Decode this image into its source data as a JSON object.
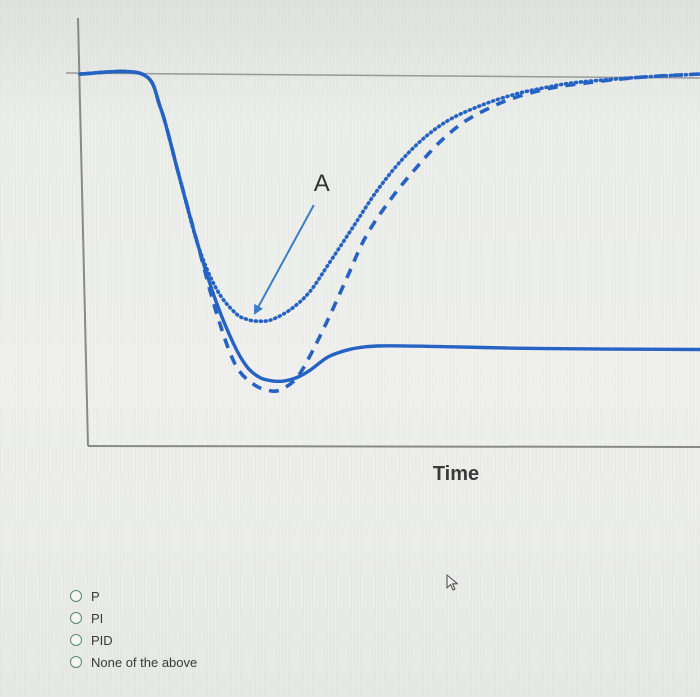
{
  "question": {
    "options": [
      {
        "label": "P"
      },
      {
        "label": "PI"
      },
      {
        "label": "PID"
      },
      {
        "label": "None of the above"
      }
    ]
  },
  "colors": {
    "series": "#2563c4",
    "arrow": "#3a7fc8",
    "axis": "#8a8a8a",
    "setpoint": "#9a9a9a",
    "radio_border": "#5a8a6a"
  },
  "icons": {
    "pointer": "mouse-pointer-icon"
  },
  "chart_data": {
    "type": "line",
    "title": "",
    "xlabel": "Time",
    "ylabel": "",
    "grid": false,
    "legend": "none",
    "xlim": [
      0,
      100
    ],
    "ylim": [
      0,
      100
    ],
    "reference_line": {
      "y": 100
    },
    "annotations": [
      {
        "text": "A",
        "target_series": "dotted",
        "target_x": 29,
        "target_y": 28,
        "label_x": 39,
        "label_y": 68
      }
    ],
    "series": [
      {
        "style": "solid",
        "x": [
          0,
          10,
          13,
          16,
          19,
          22,
          25,
          27,
          29,
          31,
          33,
          35,
          37,
          40,
          43,
          46,
          50,
          60,
          70,
          80,
          90,
          100
        ],
        "y": [
          100,
          100,
          90,
          70,
          50,
          33,
          20,
          14,
          11,
          10,
          10,
          11,
          13,
          17,
          19,
          20,
          20.3,
          20,
          19.6,
          19.4,
          19.3,
          19.2
        ]
      },
      {
        "style": "dotted",
        "x": [
          0,
          10,
          13,
          16,
          19,
          22,
          25,
          27,
          29,
          31,
          34,
          37,
          40,
          44,
          48,
          52,
          56,
          60,
          65,
          70,
          75,
          80,
          90,
          100
        ],
        "y": [
          100,
          100,
          90,
          70,
          50,
          37,
          30,
          28,
          27.5,
          28,
          31,
          36,
          44,
          55,
          66,
          75,
          82,
          87,
          91,
          94,
          96,
          97.5,
          99,
          100
        ]
      },
      {
        "style": "dashed",
        "x": [
          0,
          10,
          13,
          16,
          19,
          22,
          25,
          28,
          31,
          33,
          35,
          37,
          40,
          43,
          46,
          50,
          54,
          58,
          62,
          66,
          70,
          75,
          80,
          90,
          100
        ],
        "y": [
          100,
          100,
          90,
          70,
          50,
          30,
          15,
          9,
          7,
          8,
          11,
          17,
          28,
          40,
          52,
          63,
          72,
          80,
          86,
          90,
          93,
          95.5,
          97,
          99,
          100
        ]
      }
    ]
  }
}
